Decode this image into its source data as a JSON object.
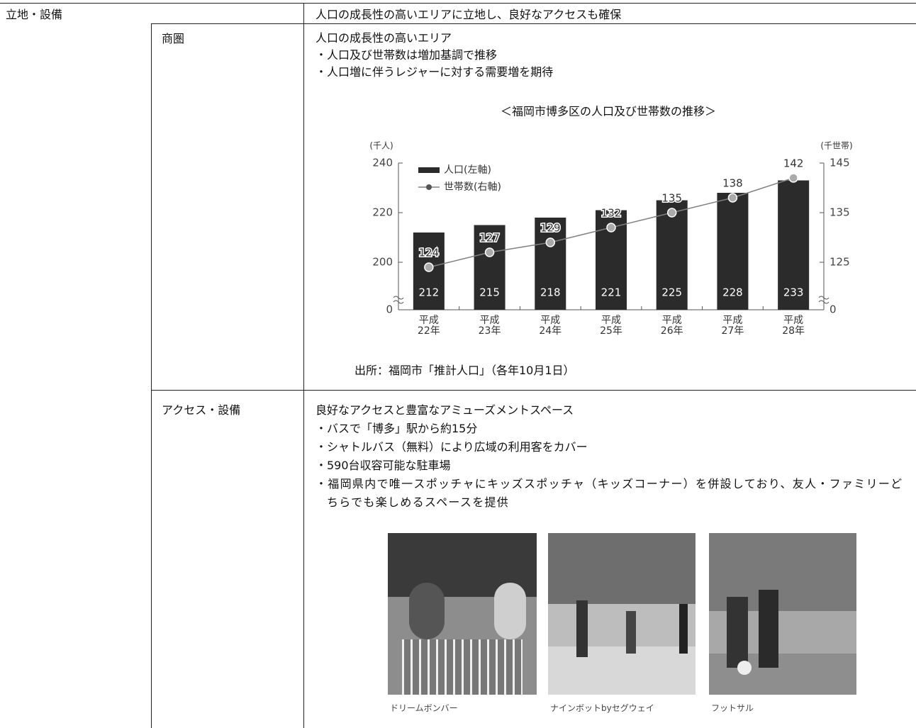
{
  "section_label": "立地・設備",
  "summary": "人口の成長性の高いエリアに立地し、良好なアクセスも確保",
  "rows": [
    {
      "label": "商圏",
      "heading": "人口の成長性の高いエリア",
      "bullets": [
        "・人口及び世帯数は増加基調で推移",
        "・人口増に伴うレジャーに対する需要増を期待"
      ],
      "source": "出所：福岡市「推計人口」（各年10月1日）"
    },
    {
      "label": "アクセス・設備",
      "heading": "良好なアクセスと豊富なアミューズメントスペース",
      "bullets": [
        "・バスで「博多」駅から約15分",
        "・シャトルバス（無料）により広域の利用客をカバー",
        "・590台収容可能な駐車場",
        "・福岡県内で唯一スポッチャにキッズスポッチャ（キッズコーナー）を併設しており、友人・ファミリーどちらでも楽しめるスペースを提供"
      ],
      "photos": [
        "ドリームボンバー",
        "ナインボットbyセグウェイ",
        "フットサル"
      ]
    }
  ],
  "chart_data": {
    "type": "bar-line",
    "title": "＜福岡市博多区の人口及び世帯数の推移＞",
    "y_label": "(千人)",
    "y2_label": "(千世帯)",
    "categories": [
      "平成\n22年",
      "平成\n23年",
      "平成\n24年",
      "平成\n25年",
      "平成\n26年",
      "平成\n27年",
      "平成\n28年"
    ],
    "series": [
      {
        "name": "人口(左軸)",
        "type": "bar",
        "color": "#2b2b2b",
        "values": [
          212,
          215,
          218,
          221,
          225,
          228,
          233
        ]
      },
      {
        "name": "世帯数(右軸)",
        "type": "line",
        "axis": "y2",
        "color": "#808080",
        "values": [
          124,
          127,
          129,
          132,
          135,
          138,
          142
        ]
      }
    ],
    "ylim": [
      0,
      240
    ],
    "yticks": [
      0,
      200,
      220,
      240
    ],
    "y2lim": [
      0,
      145
    ],
    "y2ticks": [
      0,
      125,
      135,
      145
    ],
    "axis_break": true
  }
}
